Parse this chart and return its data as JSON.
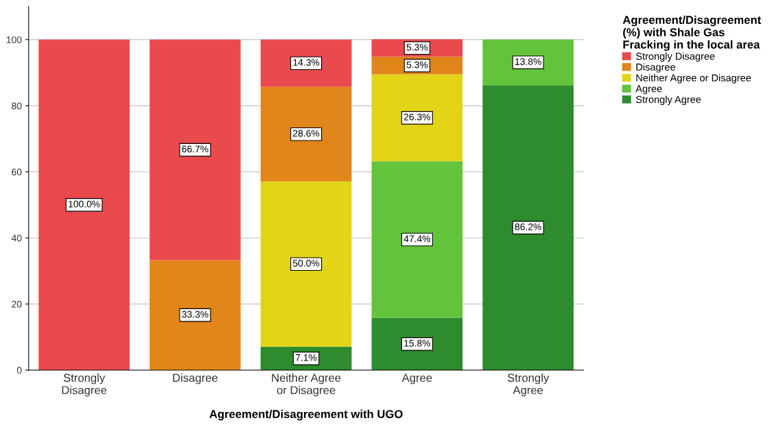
{
  "chart_data": {
    "type": "bar",
    "stacked": true,
    "xlabel": "Agreement/Disagreement with UGO",
    "legend_title": "Agreement/Disagreement\n(%) with Shale Gas\nFracking in the local area",
    "categories": [
      "Strongly\nDisagree",
      "Disagree",
      "Neither Agree\nor Disagree",
      "Agree",
      "Strongly\nAgree"
    ],
    "series": [
      {
        "name": "Strongly Agree",
        "color": "#2e8b2e",
        "values": [
          null,
          null,
          7.1,
          15.8,
          86.2
        ],
        "value_labels": [
          null,
          null,
          "7.1%",
          "15.8%",
          "86.2%"
        ]
      },
      {
        "name": "Agree",
        "color": "#63c43c",
        "values": [
          null,
          null,
          null,
          47.4,
          13.8
        ],
        "value_labels": [
          null,
          null,
          null,
          "47.4%",
          "13.8%"
        ]
      },
      {
        "name": "Neither Agree or Disagree",
        "color": "#e3d418",
        "values": [
          null,
          null,
          50.0,
          26.3,
          null
        ],
        "value_labels": [
          null,
          null,
          "50.0%",
          "26.3%",
          null
        ]
      },
      {
        "name": "Disagree",
        "color": "#e0861a",
        "values": [
          null,
          33.3,
          28.6,
          5.3,
          null
        ],
        "value_labels": [
          null,
          "33.3%",
          "28.6%",
          "5.3%",
          null
        ]
      },
      {
        "name": "Strongly Disagree",
        "color": "#ea4a4e",
        "values": [
          100.0,
          66.7,
          14.3,
          5.3,
          null
        ],
        "value_labels": [
          "100.0%",
          "66.7%",
          "14.3%",
          "5.3%",
          null
        ]
      }
    ],
    "ylim": [
      0,
      110
    ],
    "yticks": [
      0,
      20,
      40,
      60,
      80,
      100
    ],
    "grid": "y",
    "legend": "top right"
  }
}
